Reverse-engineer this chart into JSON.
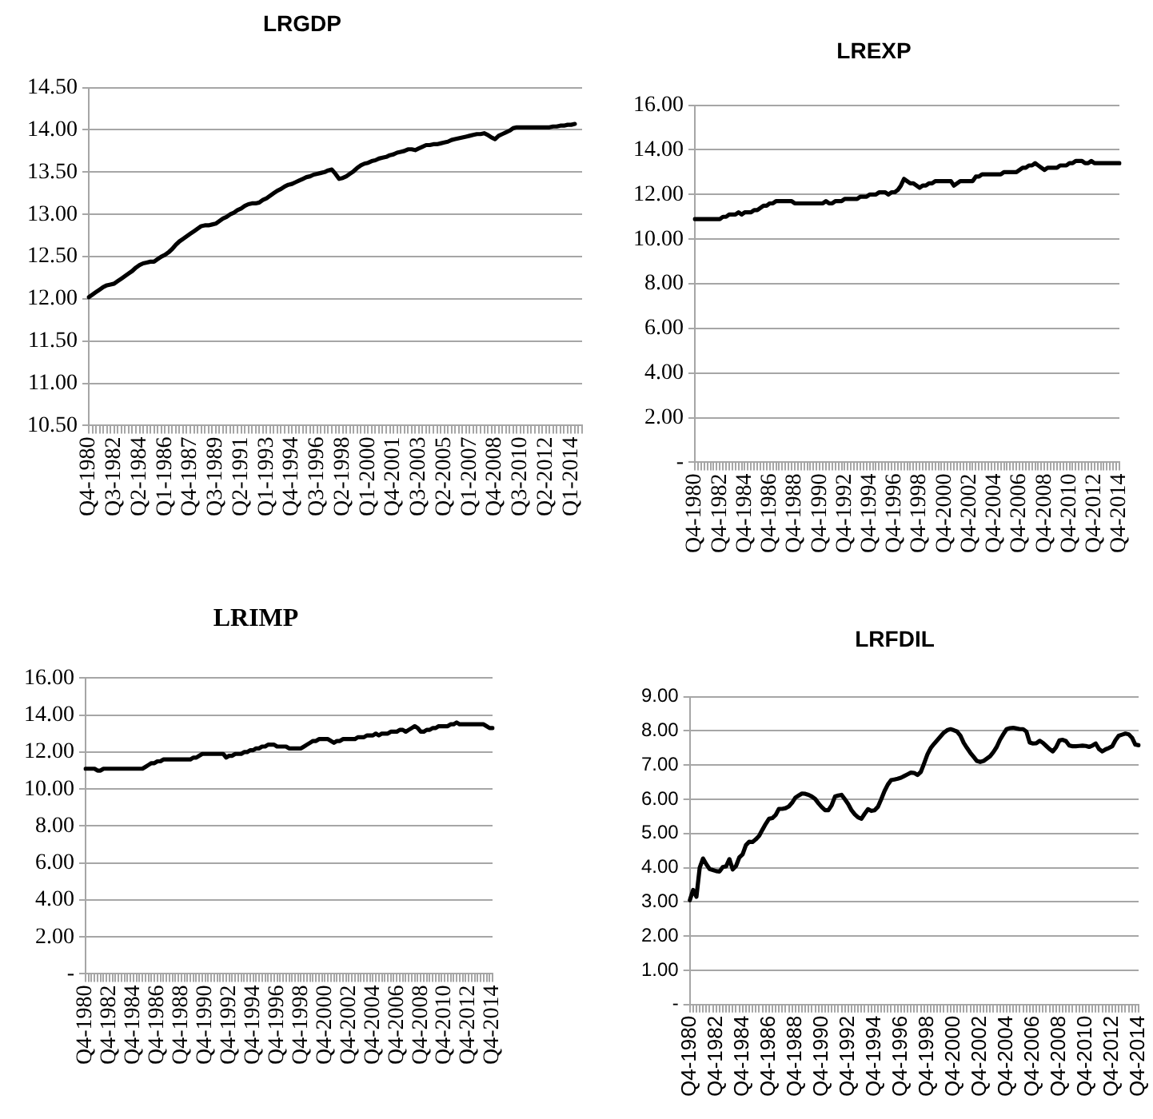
{
  "chart_data": [
    {
      "type": "line",
      "title": "LRGDP",
      "color": "#000000",
      "grid": "y",
      "ylim": [
        10.5,
        14.5
      ],
      "yticks": [
        {
          "value": 10.5,
          "label": "10.50"
        },
        {
          "value": 11,
          "label": "11.00"
        },
        {
          "value": 11.5,
          "label": "11.50"
        },
        {
          "value": 12,
          "label": "12.00"
        },
        {
          "value": 12.5,
          "label": "12.50"
        },
        {
          "value": 13,
          "label": "13.00"
        },
        {
          "value": 13.5,
          "label": "13.50"
        },
        {
          "value": 14,
          "label": "14.00"
        },
        {
          "value": 14.5,
          "label": "14.50"
        }
      ],
      "categories": [
        "Q4-1980",
        null,
        null,
        null,
        null,
        null,
        null,
        "Q3-1982",
        null,
        null,
        null,
        null,
        null,
        null,
        "Q2-1984",
        null,
        null,
        null,
        null,
        null,
        null,
        "Q1-1986",
        null,
        null,
        null,
        null,
        null,
        null,
        "Q4-1987",
        null,
        null,
        null,
        null,
        null,
        null,
        "Q3-1989",
        null,
        null,
        null,
        null,
        null,
        null,
        "Q2-1991",
        null,
        null,
        null,
        null,
        null,
        null,
        "Q1-1993",
        null,
        null,
        null,
        null,
        null,
        null,
        "Q4-1994",
        null,
        null,
        null,
        null,
        null,
        null,
        "Q3-1996",
        null,
        null,
        null,
        null,
        null,
        null,
        "Q2-1998",
        null,
        null,
        null,
        null,
        null,
        null,
        "Q1-2000",
        null,
        null,
        null,
        null,
        null,
        null,
        "Q4-2001",
        null,
        null,
        null,
        null,
        null,
        null,
        "Q3-2003",
        null,
        null,
        null,
        null,
        null,
        null,
        "Q2-2005",
        null,
        null,
        null,
        null,
        null,
        null,
        "Q1-2007",
        null,
        null,
        null,
        null,
        null,
        null,
        "Q4-2008",
        null,
        null,
        null,
        null,
        null,
        null,
        "Q3-2010",
        null,
        null,
        null,
        null,
        null,
        null,
        "Q2-2012",
        null,
        null,
        null,
        null,
        null,
        null,
        "Q1-2014",
        null,
        null,
        null
      ],
      "values": [
        12.02,
        12.05,
        12.08,
        12.11,
        12.14,
        12.16,
        12.17,
        12.18,
        12.21,
        12.24,
        12.27,
        12.3,
        12.33,
        12.37,
        12.4,
        12.42,
        12.43,
        12.44,
        12.44,
        12.47,
        12.5,
        12.52,
        12.55,
        12.59,
        12.64,
        12.68,
        12.71,
        12.74,
        12.77,
        12.8,
        12.83,
        12.86,
        12.87,
        12.87,
        12.88,
        12.89,
        12.92,
        12.95,
        12.97,
        13.0,
        13.02,
        13.05,
        13.07,
        13.1,
        13.12,
        13.13,
        13.13,
        13.14,
        13.17,
        13.19,
        13.22,
        13.25,
        13.28,
        13.3,
        13.33,
        13.35,
        13.36,
        13.38,
        13.4,
        13.42,
        13.44,
        13.45,
        13.47,
        13.48,
        13.49,
        13.5,
        13.52,
        13.53,
        13.48,
        13.42,
        13.43,
        13.45,
        13.48,
        13.51,
        13.55,
        13.58,
        13.6,
        13.61,
        13.63,
        13.64,
        13.66,
        13.67,
        13.68,
        13.7,
        13.71,
        13.73,
        13.74,
        13.75,
        13.77,
        13.77,
        13.76,
        13.78,
        13.8,
        13.82,
        13.82,
        13.83,
        13.83,
        13.84,
        13.85,
        13.86,
        13.88,
        13.89,
        13.9,
        13.91,
        13.92,
        13.93,
        13.94,
        13.95,
        13.95,
        13.96,
        13.94,
        13.91,
        13.89,
        13.93,
        13.95,
        13.97,
        13.99,
        14.02,
        14.03,
        14.03,
        14.03,
        14.03,
        14.03,
        14.03,
        14.03,
        14.03,
        14.03,
        14.03,
        14.04,
        14.04,
        14.05,
        14.05,
        14.06,
        14.06,
        14.07,
        null,
        null
      ]
    },
    {
      "type": "line",
      "title": "LREXP",
      "color": "#000000",
      "grid": "y",
      "ylim": [
        0,
        16
      ],
      "yticks": [
        {
          "value": 0,
          "label": "-"
        },
        {
          "value": 2,
          "label": "2.00"
        },
        {
          "value": 4,
          "label": "4.00"
        },
        {
          "value": 6,
          "label": "6.00"
        },
        {
          "value": 8,
          "label": "8.00"
        },
        {
          "value": 10,
          "label": "10.00"
        },
        {
          "value": 12,
          "label": "12.00"
        },
        {
          "value": 14,
          "label": "14.00"
        },
        {
          "value": 16,
          "label": "16.00"
        }
      ],
      "categories": [
        "Q4-1980",
        null,
        null,
        null,
        null,
        null,
        null,
        null,
        "Q4-1982",
        null,
        null,
        null,
        null,
        null,
        null,
        null,
        "Q4-1984",
        null,
        null,
        null,
        null,
        null,
        null,
        null,
        "Q4-1986",
        null,
        null,
        null,
        null,
        null,
        null,
        null,
        "Q4-1988",
        null,
        null,
        null,
        null,
        null,
        null,
        null,
        "Q4-1990",
        null,
        null,
        null,
        null,
        null,
        null,
        null,
        "Q4-1992",
        null,
        null,
        null,
        null,
        null,
        null,
        null,
        "Q4-1994",
        null,
        null,
        null,
        null,
        null,
        null,
        null,
        "Q4-1996",
        null,
        null,
        null,
        null,
        null,
        null,
        null,
        "Q4-1998",
        null,
        null,
        null,
        null,
        null,
        null,
        null,
        "Q4-2000",
        null,
        null,
        null,
        null,
        null,
        null,
        null,
        "Q4-2002",
        null,
        null,
        null,
        null,
        null,
        null,
        null,
        "Q4-2004",
        null,
        null,
        null,
        null,
        null,
        null,
        null,
        "Q4-2006",
        null,
        null,
        null,
        null,
        null,
        null,
        null,
        "Q4-2008",
        null,
        null,
        null,
        null,
        null,
        null,
        null,
        "Q4-2010",
        null,
        null,
        null,
        null,
        null,
        null,
        null,
        "Q4-2012",
        null,
        null,
        null,
        null,
        null,
        null,
        null,
        "Q4-2014"
      ],
      "values": [
        10.9,
        10.9,
        10.9,
        10.9,
        10.9,
        10.9,
        10.9,
        10.9,
        10.9,
        11.0,
        11.0,
        11.1,
        11.1,
        11.1,
        11.2,
        11.1,
        11.2,
        11.2,
        11.2,
        11.3,
        11.3,
        11.4,
        11.5,
        11.5,
        11.6,
        11.6,
        11.7,
        11.7,
        11.7,
        11.7,
        11.7,
        11.7,
        11.6,
        11.6,
        11.6,
        11.6,
        11.6,
        11.6,
        11.6,
        11.6,
        11.6,
        11.6,
        11.7,
        11.6,
        11.6,
        11.7,
        11.7,
        11.7,
        11.8,
        11.8,
        11.8,
        11.8,
        11.8,
        11.9,
        11.9,
        11.9,
        12.0,
        12.0,
        12.0,
        12.1,
        12.1,
        12.1,
        12.0,
        12.1,
        12.1,
        12.2,
        12.4,
        12.7,
        12.6,
        12.5,
        12.5,
        12.4,
        12.3,
        12.4,
        12.4,
        12.5,
        12.5,
        12.6,
        12.6,
        12.6,
        12.6,
        12.6,
        12.6,
        12.4,
        12.5,
        12.6,
        12.6,
        12.6,
        12.6,
        12.6,
        12.8,
        12.8,
        12.9,
        12.9,
        12.9,
        12.9,
        12.9,
        12.9,
        12.9,
        13.0,
        13.0,
        13.0,
        13.0,
        13.0,
        13.1,
        13.2,
        13.2,
        13.3,
        13.3,
        13.4,
        13.3,
        13.2,
        13.1,
        13.2,
        13.2,
        13.2,
        13.2,
        13.3,
        13.3,
        13.3,
        13.4,
        13.4,
        13.5,
        13.5,
        13.5,
        13.4,
        13.4,
        13.5,
        13.4,
        13.4,
        13.4,
        13.4,
        13.4,
        13.4,
        13.4,
        13.4,
        13.4
      ]
    },
    {
      "type": "line",
      "title": "LRIMP",
      "color": "#000000",
      "grid": "y",
      "ylim": [
        0,
        16
      ],
      "yticks": [
        {
          "value": 0,
          "label": "-"
        },
        {
          "value": 2,
          "label": "2.00"
        },
        {
          "value": 4,
          "label": "4.00"
        },
        {
          "value": 6,
          "label": "6.00"
        },
        {
          "value": 8,
          "label": "8.00"
        },
        {
          "value": 10,
          "label": "10.00"
        },
        {
          "value": 12,
          "label": "12.00"
        },
        {
          "value": 14,
          "label": "14.00"
        },
        {
          "value": 16,
          "label": "16.00"
        }
      ],
      "categories": [
        "Q4-1980",
        null,
        null,
        null,
        null,
        null,
        null,
        null,
        "Q4-1982",
        null,
        null,
        null,
        null,
        null,
        null,
        null,
        "Q4-1984",
        null,
        null,
        null,
        null,
        null,
        null,
        null,
        "Q4-1986",
        null,
        null,
        null,
        null,
        null,
        null,
        null,
        "Q4-1988",
        null,
        null,
        null,
        null,
        null,
        null,
        null,
        "Q4-1990",
        null,
        null,
        null,
        null,
        null,
        null,
        null,
        "Q4-1992",
        null,
        null,
        null,
        null,
        null,
        null,
        null,
        "Q4-1994",
        null,
        null,
        null,
        null,
        null,
        null,
        null,
        "Q4-1996",
        null,
        null,
        null,
        null,
        null,
        null,
        null,
        "Q4-1998",
        null,
        null,
        null,
        null,
        null,
        null,
        null,
        "Q4-2000",
        null,
        null,
        null,
        null,
        null,
        null,
        null,
        "Q4-2002",
        null,
        null,
        null,
        null,
        null,
        null,
        null,
        "Q4-2004",
        null,
        null,
        null,
        null,
        null,
        null,
        null,
        "Q4-2006",
        null,
        null,
        null,
        null,
        null,
        null,
        null,
        "Q4-2008",
        null,
        null,
        null,
        null,
        null,
        null,
        null,
        "Q4-2010",
        null,
        null,
        null,
        null,
        null,
        null,
        null,
        "Q4-2012",
        null,
        null,
        null,
        null,
        null,
        null,
        null,
        "Q4-2014"
      ],
      "values": [
        11.1,
        11.1,
        11.1,
        11.1,
        11.0,
        11.0,
        11.1,
        11.1,
        11.1,
        11.1,
        11.1,
        11.1,
        11.1,
        11.1,
        11.1,
        11.1,
        11.1,
        11.1,
        11.1,
        11.1,
        11.2,
        11.3,
        11.4,
        11.4,
        11.5,
        11.5,
        11.6,
        11.6,
        11.6,
        11.6,
        11.6,
        11.6,
        11.6,
        11.6,
        11.6,
        11.6,
        11.7,
        11.7,
        11.8,
        11.9,
        11.9,
        11.9,
        11.9,
        11.9,
        11.9,
        11.9,
        11.9,
        11.7,
        11.8,
        11.8,
        11.9,
        11.9,
        11.9,
        12.0,
        12.0,
        12.1,
        12.1,
        12.2,
        12.2,
        12.3,
        12.3,
        12.4,
        12.4,
        12.4,
        12.3,
        12.3,
        12.3,
        12.3,
        12.2,
        12.2,
        12.2,
        12.2,
        12.2,
        12.3,
        12.4,
        12.5,
        12.6,
        12.6,
        12.7,
        12.7,
        12.7,
        12.7,
        12.6,
        12.5,
        12.6,
        12.6,
        12.7,
        12.7,
        12.7,
        12.7,
        12.7,
        12.8,
        12.8,
        12.8,
        12.9,
        12.9,
        12.9,
        13.0,
        12.9,
        13.0,
        13.0,
        13.0,
        13.1,
        13.1,
        13.1,
        13.2,
        13.2,
        13.1,
        13.2,
        13.3,
        13.4,
        13.3,
        13.1,
        13.1,
        13.2,
        13.2,
        13.3,
        13.3,
        13.4,
        13.4,
        13.4,
        13.4,
        13.5,
        13.5,
        13.6,
        13.5,
        13.5,
        13.5,
        13.5,
        13.5,
        13.5,
        13.5,
        13.5,
        13.5,
        13.4,
        13.3,
        13.3
      ]
    },
    {
      "type": "line",
      "title": "LRFDIL",
      "color": "#000000",
      "grid": "y",
      "ylim": [
        0,
        9
      ],
      "yticks": [
        {
          "value": 0,
          "label": "-"
        },
        {
          "value": 1,
          "label": "1.00"
        },
        {
          "value": 2,
          "label": "2.00"
        },
        {
          "value": 3,
          "label": "3.00"
        },
        {
          "value": 4,
          "label": "4.00"
        },
        {
          "value": 5,
          "label": "5.00"
        },
        {
          "value": 6,
          "label": "6.00"
        },
        {
          "value": 7,
          "label": "7.00"
        },
        {
          "value": 8,
          "label": "8.00"
        },
        {
          "value": 9,
          "label": "9.00"
        }
      ],
      "categories": [
        "Q4-1980",
        null,
        null,
        null,
        null,
        null,
        null,
        null,
        "Q4-1982",
        null,
        null,
        null,
        null,
        null,
        null,
        null,
        "Q4-1984",
        null,
        null,
        null,
        null,
        null,
        null,
        null,
        "Q4-1986",
        null,
        null,
        null,
        null,
        null,
        null,
        null,
        "Q4-1988",
        null,
        null,
        null,
        null,
        null,
        null,
        null,
        "Q4-1990",
        null,
        null,
        null,
        null,
        null,
        null,
        null,
        "Q4-1992",
        null,
        null,
        null,
        null,
        null,
        null,
        null,
        "Q4-1994",
        null,
        null,
        null,
        null,
        null,
        null,
        null,
        "Q4-1996",
        null,
        null,
        null,
        null,
        null,
        null,
        null,
        "Q4-1998",
        null,
        null,
        null,
        null,
        null,
        null,
        null,
        "Q4-2000",
        null,
        null,
        null,
        null,
        null,
        null,
        null,
        "Q4-2002",
        null,
        null,
        null,
        null,
        null,
        null,
        null,
        "Q4-2004",
        null,
        null,
        null,
        null,
        null,
        null,
        null,
        "Q4-2006",
        null,
        null,
        null,
        null,
        null,
        null,
        null,
        "Q4-2008",
        null,
        null,
        null,
        null,
        null,
        null,
        null,
        "Q4-2010",
        null,
        null,
        null,
        null,
        null,
        null,
        null,
        "Q4-2012",
        null,
        null,
        null,
        null,
        null,
        null,
        null,
        "Q4-2014"
      ],
      "values": [
        3.05,
        3.35,
        3.15,
        4.0,
        4.27,
        4.1,
        3.96,
        3.93,
        3.9,
        3.89,
        4.02,
        4.04,
        4.25,
        3.95,
        4.05,
        4.3,
        4.39,
        4.66,
        4.76,
        4.75,
        4.83,
        4.93,
        5.11,
        5.28,
        5.43,
        5.45,
        5.54,
        5.72,
        5.72,
        5.74,
        5.79,
        5.9,
        6.05,
        6.11,
        6.17,
        6.16,
        6.13,
        6.08,
        6.01,
        5.88,
        5.77,
        5.68,
        5.68,
        5.83,
        6.08,
        6.11,
        6.13,
        6.0,
        5.86,
        5.68,
        5.56,
        5.47,
        5.43,
        5.58,
        5.71,
        5.66,
        5.68,
        5.78,
        6.0,
        6.24,
        6.43,
        6.56,
        6.58,
        6.6,
        6.63,
        6.68,
        6.73,
        6.78,
        6.77,
        6.71,
        6.8,
        7.05,
        7.31,
        7.5,
        7.62,
        7.73,
        7.84,
        7.95,
        8.02,
        8.05,
        8.02,
        7.98,
        7.86,
        7.65,
        7.5,
        7.36,
        7.24,
        7.12,
        7.09,
        7.12,
        7.19,
        7.26,
        7.38,
        7.53,
        7.74,
        7.9,
        8.05,
        8.08,
        8.09,
        8.07,
        8.05,
        8.05,
        7.98,
        7.66,
        7.63,
        7.64,
        7.71,
        7.65,
        7.56,
        7.47,
        7.4,
        7.52,
        7.72,
        7.74,
        7.7,
        7.57,
        7.55,
        7.55,
        7.56,
        7.57,
        7.56,
        7.53,
        7.57,
        7.63,
        7.47,
        7.4,
        7.46,
        7.5,
        7.55,
        7.73,
        7.86,
        7.89,
        7.92,
        7.9,
        7.8,
        7.6,
        7.58
      ]
    }
  ]
}
